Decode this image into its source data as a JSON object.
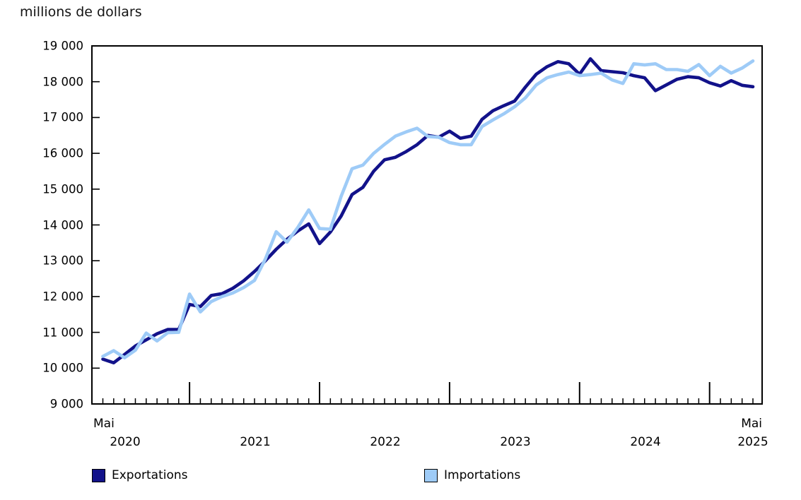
{
  "title": "millions de dollars",
  "chart_data": {
    "type": "line",
    "title": "millions de dollars",
    "x_unit": "month",
    "x_range": [
      "Mai 2020",
      "Mai 2025"
    ],
    "x_first_tick_label": "Mai",
    "x_last_tick_label": "Mai",
    "year_labels": [
      "2020",
      "2021",
      "2022",
      "2023",
      "2024",
      "2025"
    ],
    "y_axis": {
      "min": 9000,
      "max": 19000,
      "step": 1000,
      "tick_labels": [
        "19 000",
        "18 000",
        "17 000",
        "16 000",
        "15 000",
        "14 000",
        "13 000",
        "12 000",
        "11 000",
        "10 000",
        "9 000"
      ]
    },
    "grid": "off",
    "legend_position": "bottom",
    "months": [
      "2020-05",
      "2020-06",
      "2020-07",
      "2020-08",
      "2020-09",
      "2020-10",
      "2020-11",
      "2020-12",
      "2021-01",
      "2021-02",
      "2021-03",
      "2021-04",
      "2021-05",
      "2021-06",
      "2021-07",
      "2021-08",
      "2021-09",
      "2021-10",
      "2021-11",
      "2021-12",
      "2022-01",
      "2022-02",
      "2022-03",
      "2022-04",
      "2022-05",
      "2022-06",
      "2022-07",
      "2022-08",
      "2022-09",
      "2022-10",
      "2022-11",
      "2022-12",
      "2023-01",
      "2023-02",
      "2023-03",
      "2023-04",
      "2023-05",
      "2023-06",
      "2023-07",
      "2023-08",
      "2023-09",
      "2023-10",
      "2023-11",
      "2023-12",
      "2024-01",
      "2024-02",
      "2024-03",
      "2024-04",
      "2024-05",
      "2024-06",
      "2024-07",
      "2024-08",
      "2024-09",
      "2024-10",
      "2024-11",
      "2024-12",
      "2025-01",
      "2025-02",
      "2025-03",
      "2025-04",
      "2025-05"
    ],
    "series": [
      {
        "name": "Exportations",
        "color": "#12128a",
        "values": [
          10250,
          10150,
          10380,
          10620,
          10790,
          10960,
          11080,
          11080,
          11780,
          11720,
          12030,
          12080,
          12230,
          12440,
          12700,
          13000,
          13320,
          13600,
          13830,
          14030,
          13480,
          13800,
          14250,
          14850,
          15050,
          15500,
          15820,
          15890,
          16050,
          16240,
          16500,
          16450,
          16620,
          16420,
          16480,
          16950,
          17190,
          17330,
          17460,
          17850,
          18210,
          18420,
          18560,
          18500,
          18210,
          18640,
          18310,
          18280,
          18250,
          18170,
          18110,
          17750,
          17910,
          18070,
          18140,
          18110,
          17970,
          17880,
          18030,
          17900,
          17860
        ]
      },
      {
        "name": "Importations",
        "color": "#9ecbf7",
        "values": [
          10330,
          10490,
          10290,
          10500,
          10980,
          10760,
          10990,
          11000,
          12070,
          11570,
          11860,
          12000,
          12100,
          12250,
          12450,
          13050,
          13810,
          13520,
          13930,
          14420,
          13900,
          13880,
          14800,
          15570,
          15670,
          16000,
          16250,
          16480,
          16600,
          16700,
          16470,
          16450,
          16300,
          16240,
          16240,
          16750,
          16930,
          17100,
          17300,
          17550,
          17910,
          18110,
          18200,
          18270,
          18170,
          18200,
          18240,
          18050,
          17950,
          18500,
          18470,
          18500,
          18340,
          18340,
          18290,
          18480,
          18170,
          18430,
          18240,
          18380,
          18580
        ]
      }
    ]
  },
  "legend": {
    "export_label": "Exportations",
    "import_label": "Importations"
  }
}
